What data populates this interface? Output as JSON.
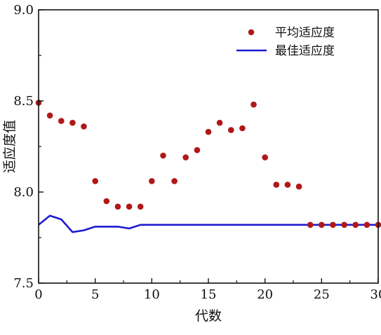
{
  "chart_data": {
    "type": "line",
    "title": "",
    "xlabel": "代数",
    "ylabel": "适应度值",
    "xlim": [
      0,
      30
    ],
    "ylim": [
      7.5,
      9.0
    ],
    "x_ticks": [
      0,
      5,
      10,
      15,
      20,
      25,
      30
    ],
    "x_tick_labels": [
      "0",
      "5",
      "10",
      "15",
      "20",
      "25",
      "30"
    ],
    "y_ticks": [
      7.5,
      8.0,
      8.5,
      9.0
    ],
    "y_tick_labels": [
      "7.5",
      "8.0",
      "8.5",
      "9.0"
    ],
    "grid": false,
    "legend_position": "top-right",
    "series": [
      {
        "name": "平均适应度",
        "style": "scatter",
        "color": "#b01818",
        "x": [
          0,
          1,
          2,
          3,
          4,
          5,
          6,
          7,
          8,
          9,
          10,
          11,
          12,
          13,
          14,
          15,
          16,
          17,
          18,
          19,
          20,
          21,
          22,
          23,
          24,
          25,
          26,
          27,
          28,
          29,
          30
        ],
        "values": [
          8.49,
          8.42,
          8.39,
          8.38,
          8.36,
          8.06,
          7.95,
          7.92,
          7.92,
          7.92,
          8.06,
          8.2,
          8.06,
          8.19,
          8.23,
          8.33,
          8.38,
          8.34,
          8.35,
          8.48,
          8.19,
          8.04,
          8.04,
          8.03,
          7.82,
          7.82,
          7.82,
          7.82,
          7.82,
          7.82,
          7.82
        ]
      },
      {
        "name": "最佳适应度",
        "style": "line",
        "color": "#1a1ad0",
        "x": [
          0,
          1,
          2,
          3,
          4,
          5,
          6,
          7,
          8,
          9,
          10,
          11,
          12,
          13,
          14,
          15,
          16,
          17,
          18,
          19,
          20,
          21,
          22,
          23,
          24,
          25,
          26,
          27,
          28,
          29,
          30
        ],
        "values": [
          7.82,
          7.87,
          7.85,
          7.78,
          7.79,
          7.81,
          7.81,
          7.81,
          7.8,
          7.82,
          7.82,
          7.82,
          7.82,
          7.82,
          7.82,
          7.82,
          7.82,
          7.82,
          7.82,
          7.82,
          7.82,
          7.82,
          7.82,
          7.82,
          7.82,
          7.82,
          7.82,
          7.82,
          7.82,
          7.82,
          7.82
        ]
      }
    ]
  }
}
